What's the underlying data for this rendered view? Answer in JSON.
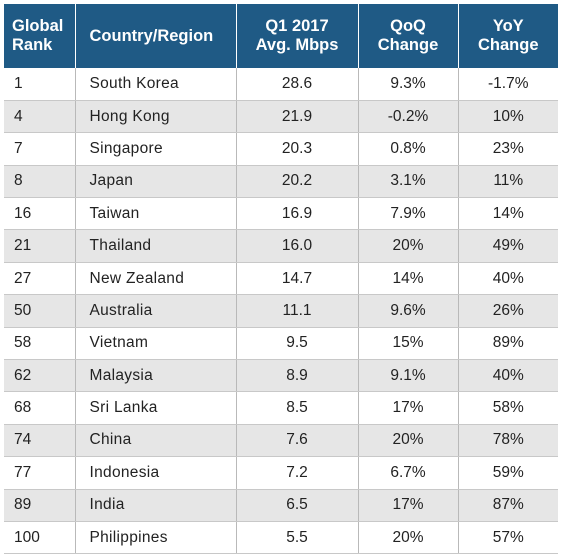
{
  "chart_data": {
    "type": "table",
    "columns": [
      {
        "key": "rank",
        "label_lines": [
          "Global",
          "Rank"
        ]
      },
      {
        "key": "country",
        "label_lines": [
          "Country/Region"
        ]
      },
      {
        "key": "speed",
        "label_lines": [
          "Q1 2017",
          "Avg. Mbps"
        ]
      },
      {
        "key": "qoq",
        "label_lines": [
          "QoQ",
          "Change"
        ]
      },
      {
        "key": "yoy",
        "label_lines": [
          "YoY",
          "Change"
        ]
      }
    ],
    "rows": [
      {
        "rank": "1",
        "country": "South Korea",
        "speed": "28.6",
        "qoq": "9.3%",
        "yoy": "-1.7%"
      },
      {
        "rank": "4",
        "country": "Hong Kong",
        "speed": "21.9",
        "qoq": "-0.2%",
        "yoy": "10%"
      },
      {
        "rank": "7",
        "country": "Singapore",
        "speed": "20.3",
        "qoq": "0.8%",
        "yoy": "23%"
      },
      {
        "rank": "8",
        "country": "Japan",
        "speed": "20.2",
        "qoq": "3.1%",
        "yoy": "11%"
      },
      {
        "rank": "16",
        "country": "Taiwan",
        "speed": "16.9",
        "qoq": "7.9%",
        "yoy": "14%"
      },
      {
        "rank": "21",
        "country": "Thailand",
        "speed": "16.0",
        "qoq": "20%",
        "yoy": "49%"
      },
      {
        "rank": "27",
        "country": "New Zealand",
        "speed": "14.7",
        "qoq": "14%",
        "yoy": "40%"
      },
      {
        "rank": "50",
        "country": "Australia",
        "speed": "11.1",
        "qoq": "9.6%",
        "yoy": "26%"
      },
      {
        "rank": "58",
        "country": "Vietnam",
        "speed": "9.5",
        "qoq": "15%",
        "yoy": "89%"
      },
      {
        "rank": "62",
        "country": "Malaysia",
        "speed": "8.9",
        "qoq": "9.1%",
        "yoy": "40%"
      },
      {
        "rank": "68",
        "country": "Sri Lanka",
        "speed": "8.5",
        "qoq": "17%",
        "yoy": "58%"
      },
      {
        "rank": "74",
        "country": "China",
        "speed": "7.6",
        "qoq": "20%",
        "yoy": "78%"
      },
      {
        "rank": "77",
        "country": "Indonesia",
        "speed": "7.2",
        "qoq": "6.7%",
        "yoy": "59%"
      },
      {
        "rank": "89",
        "country": "India",
        "speed": "6.5",
        "qoq": "17%",
        "yoy": "87%"
      },
      {
        "rank": "100",
        "country": "Philippines",
        "speed": "5.5",
        "qoq": "20%",
        "yoy": "57%"
      }
    ],
    "colors": {
      "header_bg": "#1f5a85",
      "header_text": "#ffffff",
      "stripe": "#e6e6e6"
    }
  }
}
